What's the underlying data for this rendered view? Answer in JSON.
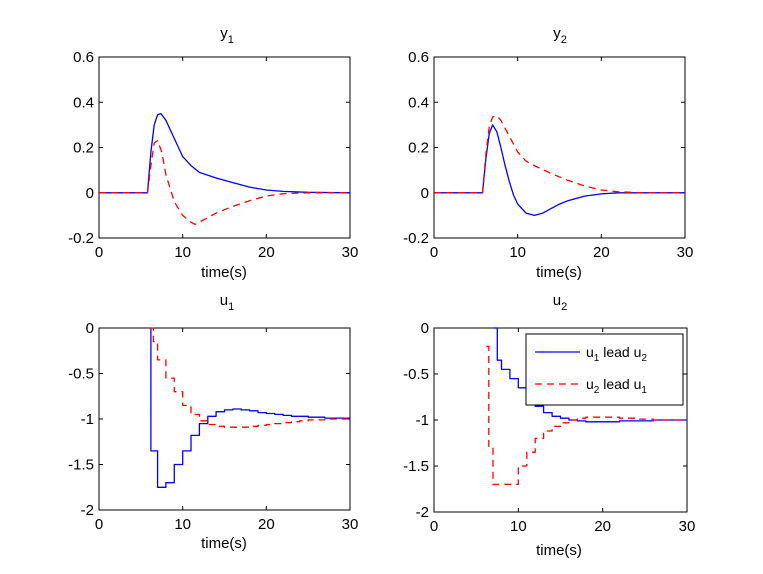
{
  "colors": {
    "series1": "#0000ff",
    "series2": "#ff0000",
    "axis": "#000000",
    "background": "#ffffff"
  },
  "legend": {
    "placement": "top-right of u_2 panel",
    "entries": [
      {
        "a": "u",
        "a_sub": "1",
        "mid": " lead ",
        "b": "u",
        "b_sub": "2",
        "style": "solid",
        "color": "#0000ff"
      },
      {
        "a": "u",
        "a_sub": "2",
        "mid": " lead ",
        "b": "u",
        "b_sub": "1",
        "style": "dashed",
        "color": "#ff0000"
      }
    ]
  },
  "chart_data": [
    {
      "type": "line",
      "title": "y",
      "title_sub": "1",
      "xlabel": "time(s)",
      "ylabel": "",
      "xlim": [
        0,
        30
      ],
      "ylim": [
        -0.2,
        0.6
      ],
      "xticks": [
        0,
        10,
        20,
        30
      ],
      "xtick_labels": [
        "0",
        "10",
        "20",
        "30"
      ],
      "yticks": [
        -0.2,
        0,
        0.2,
        0.4,
        0.6
      ],
      "ytick_labels": [
        "-0.2",
        "0",
        "0.2",
        "0.4",
        "0.6"
      ],
      "step": false,
      "series": [
        {
          "name": "u1 lead u2",
          "style": "solid",
          "color": "#0000ff",
          "x": [
            0,
            5.8,
            6.2,
            6.6,
            7.0,
            7.4,
            8.0,
            9.0,
            10.0,
            11.0,
            12.0,
            14.0,
            16.0,
            18.0,
            20.0,
            22.0,
            25.0,
            30.0
          ],
          "y": [
            0,
            0,
            0.18,
            0.3,
            0.345,
            0.35,
            0.32,
            0.24,
            0.16,
            0.12,
            0.09,
            0.065,
            0.045,
            0.025,
            0.012,
            0.006,
            0.002,
            0
          ]
        },
        {
          "name": "u2 lead u1",
          "style": "dashed",
          "color": "#ff0000",
          "x": [
            0,
            5.8,
            6.2,
            6.6,
            7.0,
            7.5,
            8.0,
            9.0,
            10.0,
            11.0,
            11.5,
            12.0,
            13.0,
            14.0,
            16.0,
            18.0,
            20.0,
            22.0,
            25.0,
            30.0
          ],
          "y": [
            0,
            0,
            0.12,
            0.22,
            0.23,
            0.18,
            0.08,
            -0.04,
            -0.1,
            -0.13,
            -0.14,
            -0.13,
            -0.11,
            -0.09,
            -0.06,
            -0.035,
            -0.015,
            -0.004,
            0,
            0
          ]
        }
      ]
    },
    {
      "type": "line",
      "title": "y",
      "title_sub": "2",
      "xlabel": "time(s)",
      "ylabel": "",
      "xlim": [
        0,
        30
      ],
      "ylim": [
        -0.2,
        0.6
      ],
      "xticks": [
        0,
        10,
        20,
        30
      ],
      "xtick_labels": [
        "0",
        "10",
        "20",
        "30"
      ],
      "yticks": [
        -0.2,
        0,
        0.2,
        0.4,
        0.6
      ],
      "ytick_labels": [
        "-0.2",
        "0",
        "0.2",
        "0.4",
        "0.6"
      ],
      "step": false,
      "series": [
        {
          "name": "u1 lead u2",
          "style": "solid",
          "color": "#0000ff",
          "x": [
            0,
            5.8,
            6.2,
            6.6,
            7.0,
            7.5,
            8.0,
            8.5,
            9.0,
            9.5,
            10.0,
            11.0,
            12.0,
            13.0,
            14.0,
            15.0,
            16.0,
            18.0,
            20.0,
            22.0,
            25.0,
            30.0
          ],
          "y": [
            0,
            0,
            0.15,
            0.26,
            0.3,
            0.27,
            0.2,
            0.12,
            0.05,
            -0.01,
            -0.05,
            -0.09,
            -0.1,
            -0.09,
            -0.07,
            -0.05,
            -0.035,
            -0.015,
            -0.005,
            0,
            0,
            0
          ]
        },
        {
          "name": "u2 lead u1",
          "style": "dashed",
          "color": "#ff0000",
          "x": [
            0,
            5.8,
            6.2,
            6.6,
            7.0,
            7.5,
            8.0,
            9.0,
            10.0,
            11.0,
            12.0,
            14.0,
            16.0,
            18.0,
            20.0,
            22.0,
            25.0,
            30.0
          ],
          "y": [
            0,
            0,
            0.17,
            0.29,
            0.335,
            0.34,
            0.32,
            0.25,
            0.18,
            0.14,
            0.12,
            0.085,
            0.055,
            0.03,
            0.012,
            0.004,
            0,
            0
          ]
        }
      ]
    },
    {
      "type": "line",
      "title": "u",
      "title_sub": "1",
      "xlabel": "time(s)",
      "ylabel": "",
      "xlim": [
        0,
        30
      ],
      "ylim": [
        -2,
        0
      ],
      "xticks": [
        0,
        10,
        20,
        30
      ],
      "xtick_labels": [
        "0",
        "10",
        "20",
        "30"
      ],
      "yticks": [
        -2,
        -1.5,
        -1,
        -0.5,
        0
      ],
      "ytick_labels": [
        "-2",
        "-1.5",
        "-1",
        "-0.5",
        "0"
      ],
      "step": true,
      "series": [
        {
          "name": "u1 lead u2",
          "style": "solid",
          "color": "#0000ff",
          "x": [
            6,
            6.2,
            7,
            8,
            9,
            10,
            11,
            12,
            13,
            14,
            15,
            16,
            17,
            18,
            19,
            20,
            21,
            22,
            23,
            24,
            25,
            26,
            27,
            28,
            30
          ],
          "y": [
            0,
            -1.35,
            -1.75,
            -1.7,
            -1.5,
            -1.35,
            -1.18,
            -1.05,
            -0.97,
            -0.92,
            -0.9,
            -0.89,
            -0.9,
            -0.91,
            -0.93,
            -0.94,
            -0.95,
            -0.96,
            -0.97,
            -0.97,
            -0.98,
            -0.98,
            -0.99,
            -0.99,
            -0.99
          ]
        },
        {
          "name": "u2 lead u1",
          "style": "dashed",
          "color": "#ff0000",
          "x": [
            6,
            6.5,
            7,
            8,
            9,
            10,
            11,
            12,
            13,
            14,
            15,
            16,
            17,
            18,
            19,
            20,
            21,
            22,
            23,
            24,
            25,
            26,
            27,
            28,
            30
          ],
          "y": [
            0,
            -0.15,
            -0.35,
            -0.55,
            -0.7,
            -0.85,
            -0.95,
            -1.02,
            -1.06,
            -1.08,
            -1.09,
            -1.09,
            -1.09,
            -1.08,
            -1.07,
            -1.06,
            -1.05,
            -1.04,
            -1.03,
            -1.02,
            -1.01,
            -1.01,
            -1.0,
            -1.0,
            -1.0
          ]
        }
      ]
    },
    {
      "type": "line",
      "title": "u",
      "title_sub": "2",
      "xlabel": "time(s)",
      "ylabel": "",
      "xlim": [
        0,
        30
      ],
      "ylim": [
        -2,
        0
      ],
      "xticks": [
        0,
        10,
        20,
        30
      ],
      "xtick_labels": [
        "0",
        "10",
        "20",
        "30"
      ],
      "yticks": [
        -2,
        -1.5,
        -1,
        -0.5,
        0
      ],
      "ytick_labels": [
        "-2",
        "-1.5",
        "-1",
        "-0.5",
        "0"
      ],
      "step": true,
      "series": [
        {
          "name": "u1 lead u2",
          "style": "solid",
          "color": "#0000ff",
          "x": [
            7,
            7.5,
            8,
            9,
            10,
            11,
            12,
            13,
            14,
            15,
            16,
            17,
            18,
            19,
            20,
            22,
            24,
            26,
            28,
            30
          ],
          "y": [
            0,
            -0.35,
            -0.45,
            -0.55,
            -0.65,
            -0.75,
            -0.85,
            -0.92,
            -0.96,
            -0.98,
            -1.0,
            -1.01,
            -1.02,
            -1.02,
            -1.02,
            -1.01,
            -1.01,
            -1.0,
            -1.0,
            -1.0
          ]
        },
        {
          "name": "u2 lead u1",
          "style": "dashed",
          "color": "#ff0000",
          "x": [
            6.2,
            6.5,
            7,
            8,
            9,
            10,
            11,
            12,
            13,
            14,
            15,
            16,
            17,
            18,
            19,
            20,
            22,
            24,
            26,
            28,
            30
          ],
          "y": [
            -0.2,
            -1.3,
            -1.7,
            -1.7,
            -1.7,
            -1.5,
            -1.35,
            -1.2,
            -1.12,
            -1.07,
            -1.03,
            -1.0,
            -0.98,
            -0.97,
            -0.97,
            -0.97,
            -0.98,
            -0.99,
            -1.0,
            -1.0,
            -1.0
          ]
        }
      ]
    }
  ]
}
